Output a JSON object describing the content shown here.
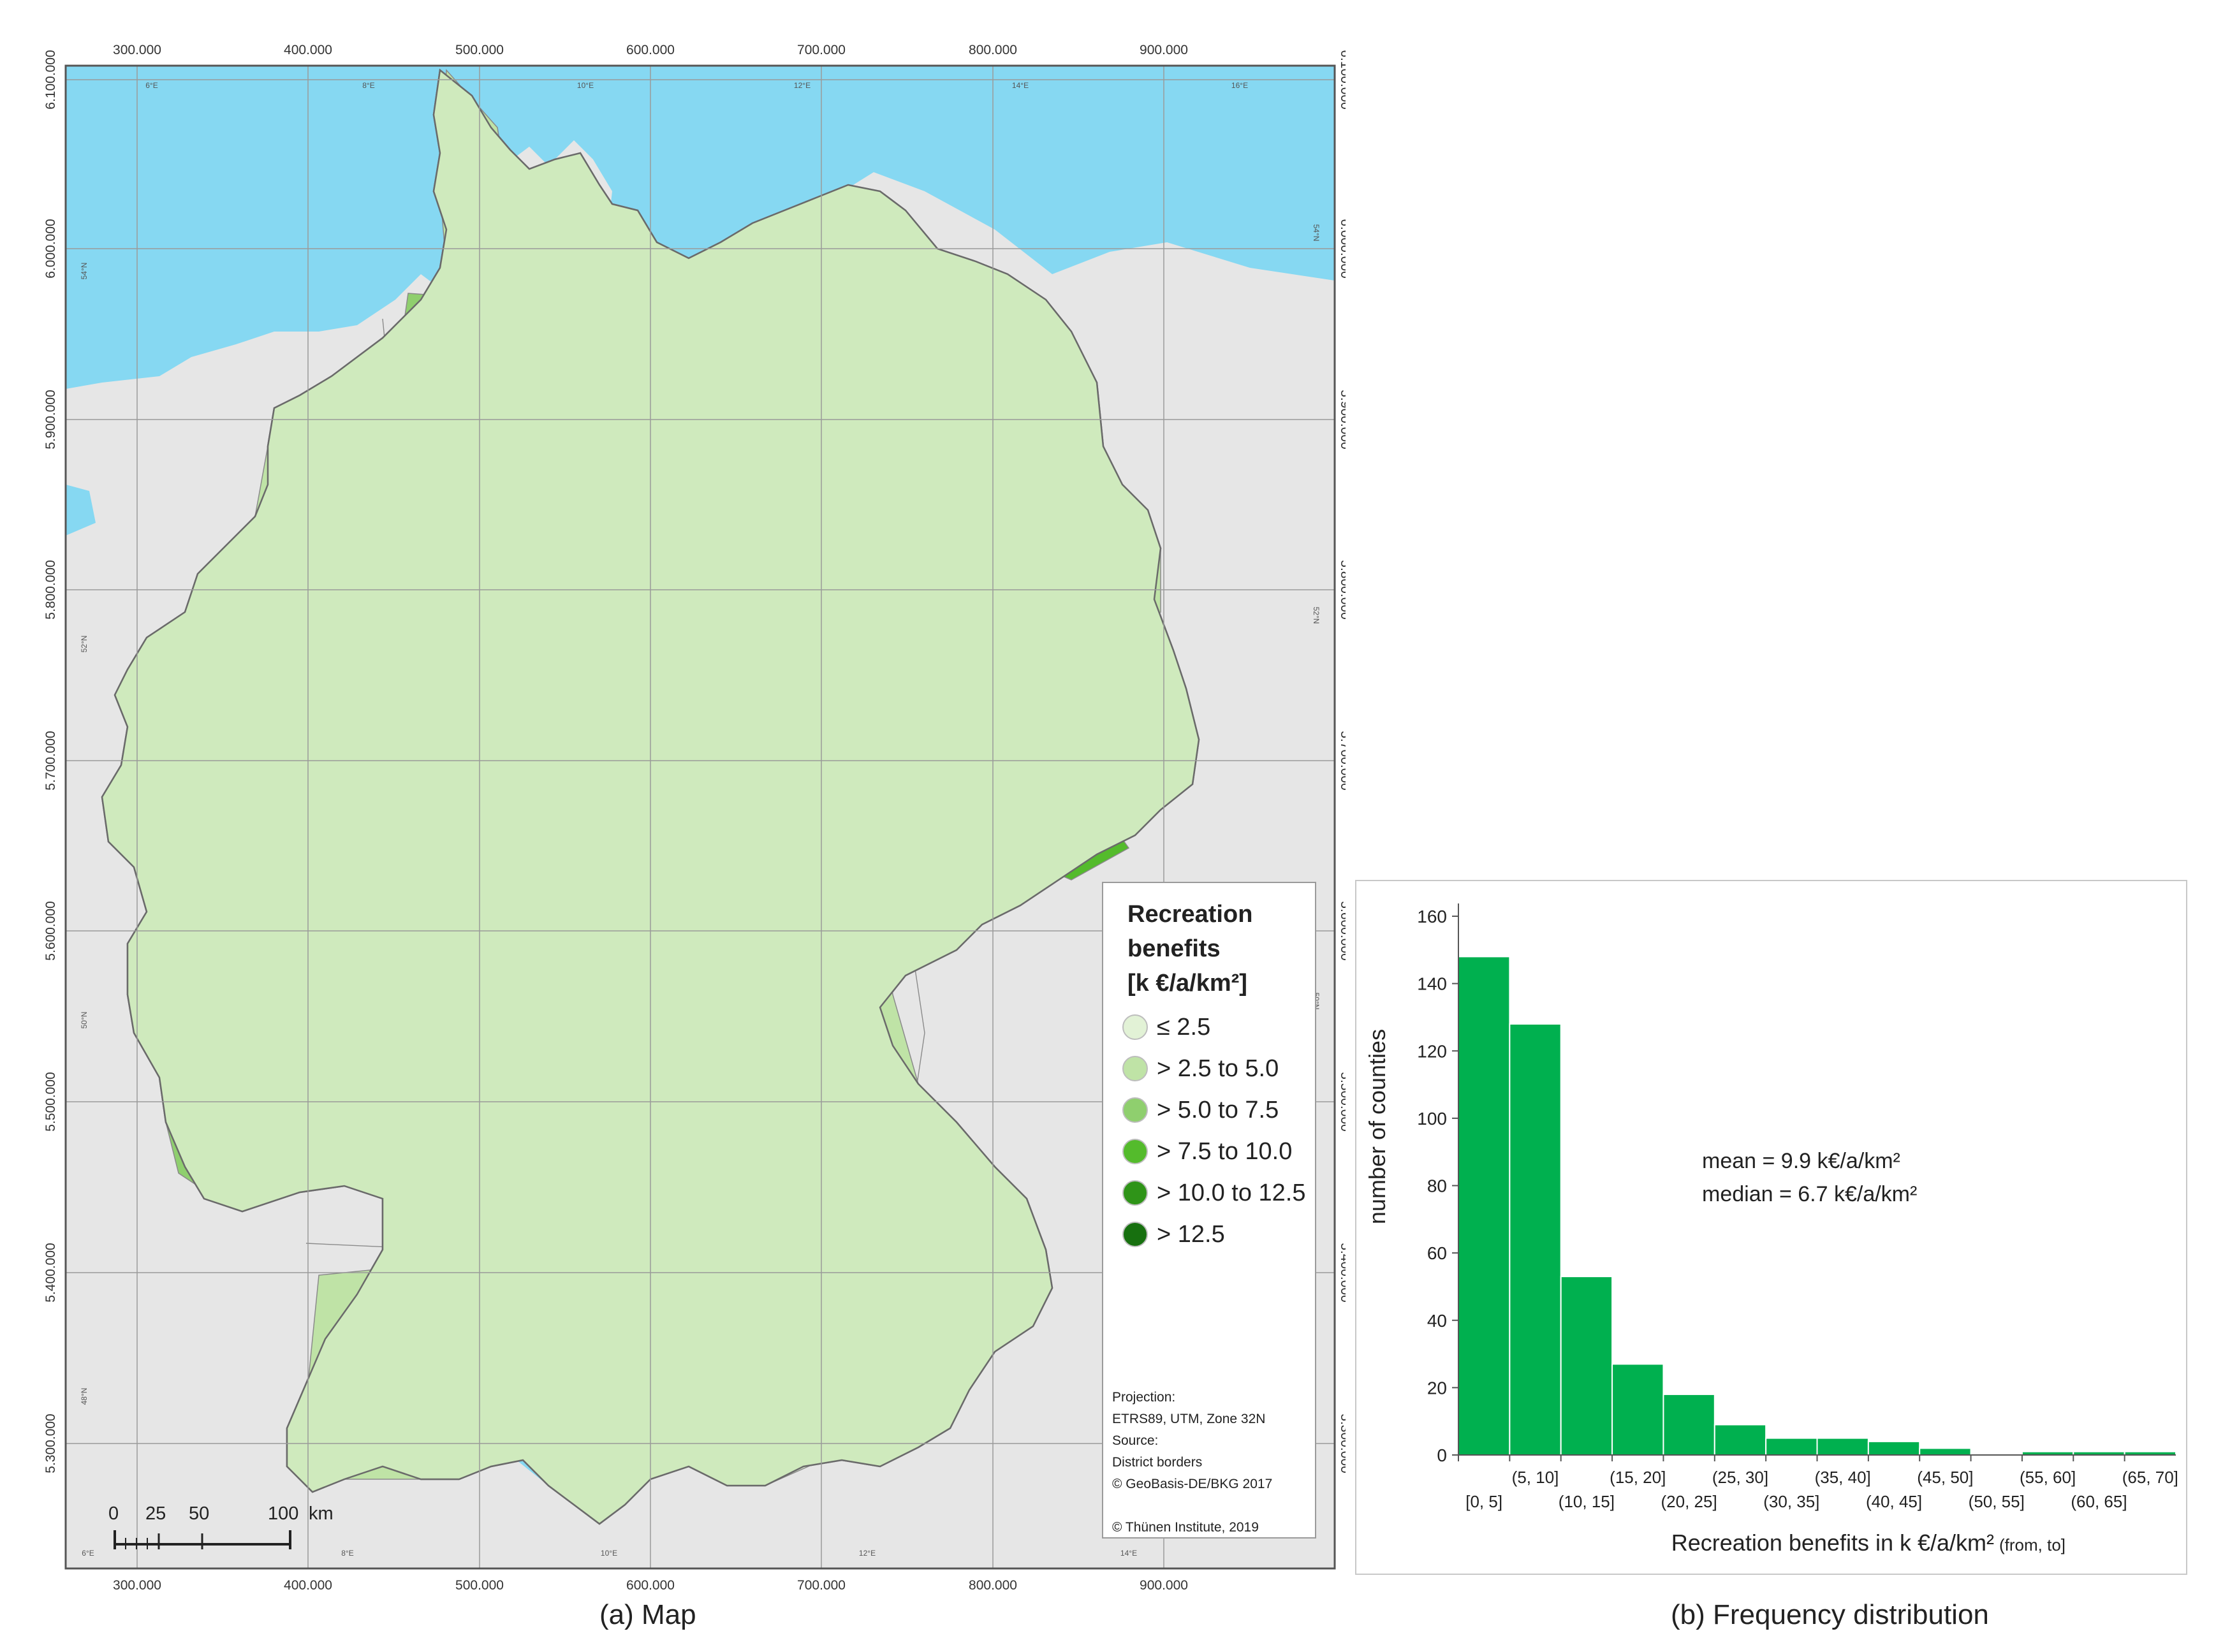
{
  "map": {
    "caption": "(a) Map",
    "x_coords_top": [
      "300.000",
      "400.000",
      "500.000",
      "600.000",
      "700.000",
      "800.000",
      "900.000"
    ],
    "x_coords_bottom": [
      "300.000",
      "400.000",
      "500.000",
      "600.000",
      "700.000",
      "800.000",
      "900.000"
    ],
    "y_coords": [
      "6.100.000",
      "6.000.000",
      "5.900.000",
      "5.800.000",
      "5.700.000",
      "5.600.000",
      "5.500.000",
      "5.400.000",
      "5.300.000"
    ],
    "lon_labels_top": [
      "6°E",
      "8°E",
      "10°E",
      "12°E",
      "14°E",
      "16°E"
    ],
    "lon_labels_bottom": [
      "6°E",
      "8°E",
      "10°E",
      "12°E",
      "14°E"
    ],
    "lat_labels_left": [
      "54°N",
      "52°N",
      "50°N",
      "48°N"
    ],
    "lat_labels_right": [
      "54°N",
      "52°N",
      "50°N"
    ],
    "colors": {
      "sea": "#86d8f2",
      "neighbour_land": "#e6e6e6",
      "border": "#6a6a6a",
      "grid": "#9a9a9a"
    },
    "legend": {
      "title_lines": [
        "Recreation",
        "benefits",
        "[k €/a/km²]"
      ],
      "classes": [
        {
          "label": "≤ 2.5",
          "color": "#e2f2d6"
        },
        {
          "label": "> 2.5 to 5.0",
          "color": "#bfe3a6"
        },
        {
          "label": "> 5.0 to 7.5",
          "color": "#8fcf6e"
        },
        {
          "label": "> 7.5 to 10.0",
          "color": "#54bb2c"
        },
        {
          "label": "> 10.0 to 12.5",
          "color": "#2f9418"
        },
        {
          "label": "> 12.5",
          "color": "#17700f"
        }
      ],
      "meta_lines": [
        "Projection:",
        "ETRS89, UTM, Zone 32N",
        "Source:",
        "District borders",
        "© GeoBasis-DE/BKG 2017",
        "",
        "© Thünen Institute, 2019"
      ]
    },
    "scalebar": {
      "ticks": [
        "0",
        "25",
        "50",
        "100"
      ],
      "unit": "km"
    }
  },
  "chart_data": {
    "type": "bar",
    "title": "",
    "caption": "(b) Frequency distribution",
    "xlabel_main": "Recreation benefits in k €/a/km²",
    "xlabel_suffix": "(from, to]",
    "ylabel": "number of counties",
    "ylim": [
      0,
      160
    ],
    "yticks": [
      0,
      20,
      40,
      60,
      80,
      100,
      120,
      140,
      160
    ],
    "categories": [
      "[0, 5]",
      "(5, 10]",
      "(10, 15]",
      "(15, 20]",
      "(20, 25]",
      "(25, 30]",
      "(30, 35]",
      "(35, 40]",
      "(40, 45]",
      "(45, 50]",
      "(50, 55]",
      "(55, 60]",
      "(60, 65]",
      "(65, 70]"
    ],
    "values": [
      148,
      128,
      53,
      27,
      18,
      9,
      5,
      5,
      4,
      2,
      0,
      1,
      1,
      1
    ],
    "bar_color": "#00b04f",
    "annotations": [
      "mean =  9.9 k€/a/km²",
      "median = 6.7 k€/a/km²"
    ],
    "grid": false
  }
}
